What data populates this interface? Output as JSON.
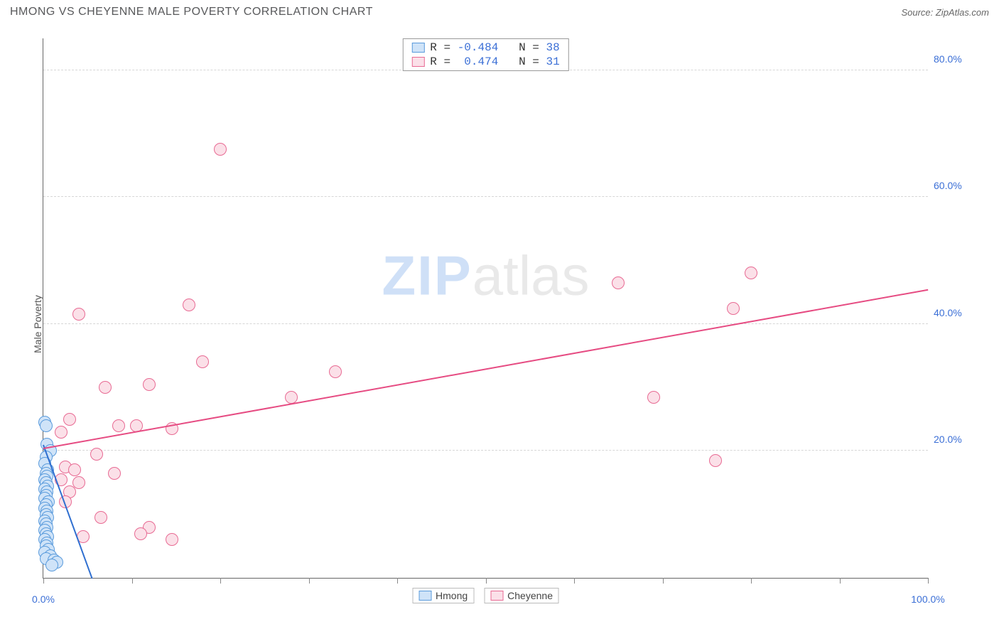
{
  "header": {
    "title": "HMONG VS CHEYENNE MALE POVERTY CORRELATION CHART",
    "source_prefix": "Source: ",
    "source_name": "ZipAtlas.com"
  },
  "yaxis": {
    "label": "Male Poverty"
  },
  "watermark": {
    "part1": "ZIP",
    "part2": "atlas"
  },
  "chart": {
    "type": "scatter",
    "xlim": [
      0,
      100
    ],
    "ylim": [
      0,
      85
    ],
    "xticks": [
      0,
      10,
      20,
      30,
      40,
      50,
      60,
      70,
      80,
      90,
      100
    ],
    "xtick_labels": {
      "0": "0.0%",
      "100": "100.0%"
    },
    "yticks": [
      20,
      40,
      60,
      80
    ],
    "ytick_labels": [
      "20.0%",
      "40.0%",
      "60.0%",
      "80.0%"
    ],
    "grid_color": "#d6d6d6",
    "axis_color": "#666666",
    "background_color": "#ffffff",
    "label_color": "#3b6fd6",
    "marker_radius": 9,
    "marker_border_width": 1.5,
    "series": [
      {
        "name": "Hmong",
        "fill": "#cfe3f8",
        "stroke": "#5a9bdc",
        "trend_color": "#2f6fd0",
        "R": "-0.484",
        "N": "38",
        "trend": {
          "x1": 0,
          "y1": 21,
          "x2": 5.5,
          "y2": 0
        },
        "points": [
          [
            0.2,
            24.5
          ],
          [
            0.3,
            24.0
          ],
          [
            0.4,
            21.0
          ],
          [
            0.8,
            20.0
          ],
          [
            0.3,
            19.0
          ],
          [
            0.2,
            18.0
          ],
          [
            0.5,
            17.0
          ],
          [
            0.3,
            16.5
          ],
          [
            0.4,
            16.0
          ],
          [
            0.2,
            15.5
          ],
          [
            0.3,
            15.0
          ],
          [
            0.5,
            14.5
          ],
          [
            0.2,
            14.0
          ],
          [
            0.4,
            13.5
          ],
          [
            0.3,
            13.0
          ],
          [
            0.2,
            12.5
          ],
          [
            0.6,
            12.0
          ],
          [
            0.3,
            11.5
          ],
          [
            0.2,
            11.0
          ],
          [
            0.4,
            10.5
          ],
          [
            0.3,
            10.0
          ],
          [
            0.5,
            9.5
          ],
          [
            0.2,
            9.0
          ],
          [
            0.3,
            8.5
          ],
          [
            0.4,
            8.0
          ],
          [
            0.2,
            7.5
          ],
          [
            0.3,
            7.0
          ],
          [
            0.5,
            6.5
          ],
          [
            0.2,
            6.0
          ],
          [
            0.4,
            5.5
          ],
          [
            0.3,
            5.0
          ],
          [
            0.6,
            4.5
          ],
          [
            0.2,
            4.0
          ],
          [
            0.8,
            3.5
          ],
          [
            0.3,
            3.0
          ],
          [
            1.2,
            2.8
          ],
          [
            1.5,
            2.5
          ],
          [
            1.0,
            2.0
          ]
        ]
      },
      {
        "name": "Cheyenne",
        "fill": "#fbe0e8",
        "stroke": "#e86a93",
        "trend_color": "#e64b82",
        "R": "0.474",
        "N": "31",
        "trend": {
          "x1": 0,
          "y1": 20.5,
          "x2": 100,
          "y2": 45.5
        },
        "points": [
          [
            20.0,
            67.5
          ],
          [
            80.0,
            48.0
          ],
          [
            65.0,
            46.5
          ],
          [
            16.5,
            43.0
          ],
          [
            78.0,
            42.5
          ],
          [
            4.0,
            41.5
          ],
          [
            18.0,
            34.0
          ],
          [
            33.0,
            32.5
          ],
          [
            7.0,
            30.0
          ],
          [
            12.0,
            30.5
          ],
          [
            28.0,
            28.5
          ],
          [
            69.0,
            28.5
          ],
          [
            3.0,
            25.0
          ],
          [
            8.5,
            24.0
          ],
          [
            10.5,
            24.0
          ],
          [
            14.5,
            23.5
          ],
          [
            2.0,
            23.0
          ],
          [
            6.0,
            19.5
          ],
          [
            76.0,
            18.5
          ],
          [
            2.5,
            17.5
          ],
          [
            3.5,
            17.0
          ],
          [
            8.0,
            16.5
          ],
          [
            2.0,
            15.5
          ],
          [
            4.0,
            15.0
          ],
          [
            3.0,
            13.5
          ],
          [
            2.5,
            12.0
          ],
          [
            6.5,
            9.5
          ],
          [
            12.0,
            8.0
          ],
          [
            11.0,
            7.0
          ],
          [
            14.5,
            6.0
          ],
          [
            4.5,
            6.5
          ]
        ]
      }
    ]
  },
  "legend_top": {
    "r_label": "R =",
    "n_label": "N ="
  },
  "legend_bottom": {
    "items": [
      "Hmong",
      "Cheyenne"
    ]
  }
}
